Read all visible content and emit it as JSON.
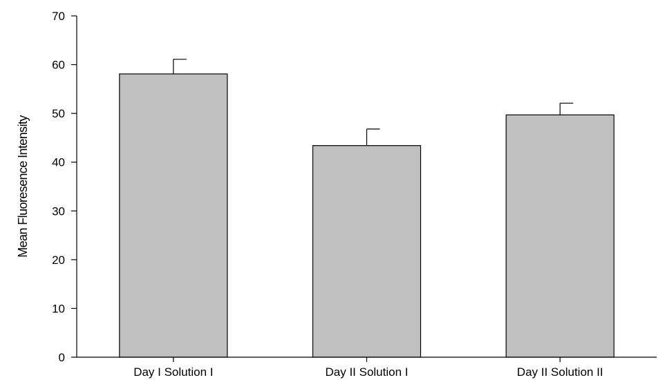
{
  "chart_data": {
    "type": "bar",
    "title": "",
    "xlabel": "",
    "ylabel": "Mean Fluoresence Intensity",
    "categories": [
      "Day I Solution I",
      "Day II Solution I",
      "Day II Solution II"
    ],
    "values": [
      58.1,
      43.4,
      49.7
    ],
    "error": [
      3.0,
      3.4,
      2.4
    ],
    "ylim": [
      0,
      70
    ],
    "yticks": [
      0,
      10,
      20,
      30,
      40,
      50,
      60,
      70
    ],
    "ytick_labels": [
      "0",
      "10",
      "20",
      "30",
      "40",
      "50",
      "60",
      "70"
    ],
    "grid": false,
    "legend": "none",
    "bar_color": "#c0c0c0",
    "edge_color": "#000000"
  }
}
